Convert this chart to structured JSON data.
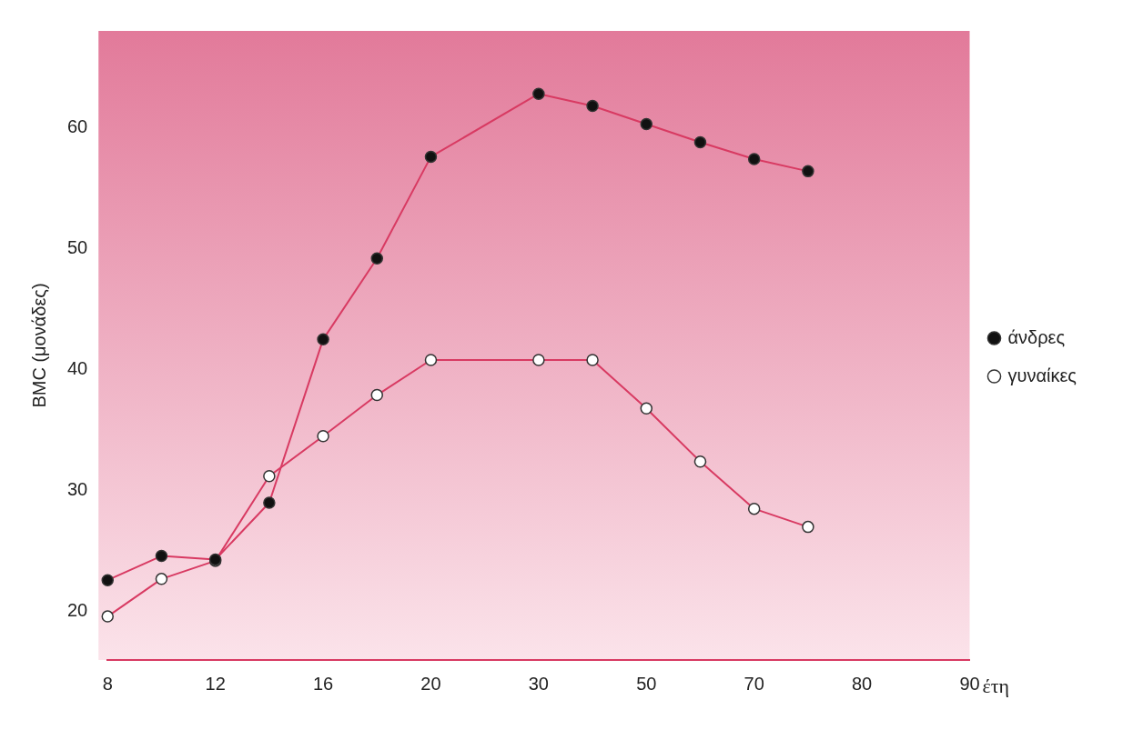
{
  "chart_data": {
    "type": "line",
    "xlabel": "έτη",
    "ylabel": "BMC (μονάδες)",
    "categories": [
      "8",
      null,
      "12",
      null,
      "16",
      null,
      "20",
      null,
      "30",
      null,
      "50",
      null,
      "70",
      null,
      "80",
      null,
      "90"
    ],
    "series": [
      {
        "name": "άνδρες",
        "color": "#111111",
        "values": [
          22.6,
          24.6,
          24.3,
          29,
          42.5,
          49.2,
          57.6,
          null,
          62.8,
          61.8,
          60.3,
          58.8,
          57.4,
          56.4,
          null,
          null,
          null
        ]
      },
      {
        "name": "γυναίκες",
        "color": "#ffffff",
        "values": [
          19.6,
          22.7,
          24.2,
          31.2,
          34.5,
          37.9,
          40.8,
          null,
          40.8,
          40.8,
          36.8,
          32.4,
          28.5,
          27,
          null,
          null,
          null
        ]
      }
    ],
    "ylim": [
      16,
      68
    ],
    "yticks": [
      20,
      30,
      40,
      50,
      60
    ],
    "grid": false,
    "legend": "right",
    "marker": "circle",
    "line_style": "solid"
  }
}
